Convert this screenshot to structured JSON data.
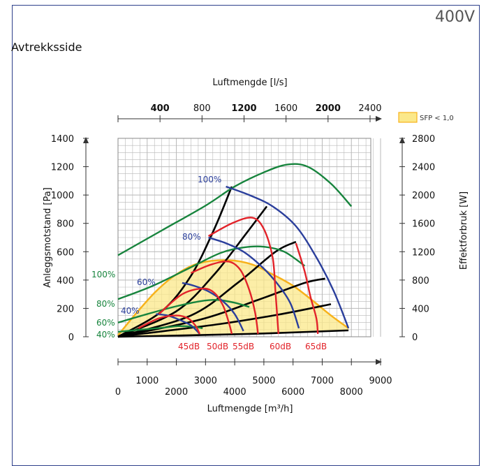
{
  "header": {
    "voltage": "400V",
    "section": "Avtrekksside"
  },
  "legend": {
    "label": "SFP < 1,0",
    "color": "#fbe88a"
  },
  "colors": {
    "fan": "#2b3f9c",
    "power": "#17843d",
    "sound": "#e2232a",
    "duct": "#000000",
    "sfp_border": "#f7b21b",
    "grid": "#b8b8b8"
  },
  "chart_data": {
    "type": "line",
    "x_bottom": {
      "label": "Luftmengde [m³/h]",
      "range": [
        0,
        9000
      ],
      "ticks_low": [
        "0",
        "2000",
        "4000",
        "6000",
        "8000"
      ],
      "ticks_high": [
        "1000",
        "3000",
        "5000",
        "7000",
        "9000"
      ]
    },
    "x_top": {
      "label": "Luftmengde [l/s]",
      "range": [
        0,
        2500
      ],
      "ticks": [
        "400",
        "800",
        "1200",
        "1600",
        "2000",
        "2400"
      ]
    },
    "y_left": {
      "label": "Anleggsmotstand [Pa]",
      "range": [
        0,
        1400
      ],
      "ticks": [
        "0",
        "200",
        "400",
        "600",
        "800",
        "1000",
        "1200",
        "1400"
      ]
    },
    "y_right": {
      "label": "Effektforbruk [W]",
      "range": [
        0,
        2800
      ],
      "ticks": [
        "0",
        "400",
        "800",
        "1200",
        "1600",
        "2000",
        "2400",
        "2800"
      ]
    },
    "grid": true,
    "fan_curves": [
      {
        "name": "100%",
        "points": [
          [
            3700,
            1060
          ],
          [
            4500,
            1000
          ],
          [
            5300,
            920
          ],
          [
            6100,
            780
          ],
          [
            6800,
            560
          ],
          [
            7400,
            320
          ],
          [
            7900,
            60
          ]
        ]
      },
      {
        "name": "80%",
        "points": [
          [
            3100,
            700
          ],
          [
            3700,
            660
          ],
          [
            4300,
            600
          ],
          [
            4900,
            500
          ],
          [
            5400,
            390
          ],
          [
            5900,
            240
          ],
          [
            6200,
            60
          ]
        ]
      },
      {
        "name": "60%",
        "points": [
          [
            2200,
            380
          ],
          [
            2600,
            360
          ],
          [
            3100,
            320
          ],
          [
            3600,
            250
          ],
          [
            4000,
            160
          ],
          [
            4300,
            40
          ]
        ]
      },
      {
        "name": "40%",
        "points": [
          [
            1300,
            160
          ],
          [
            1700,
            150
          ],
          [
            2100,
            120
          ],
          [
            2500,
            80
          ],
          [
            2800,
            20
          ]
        ]
      }
    ],
    "power_curves": [
      {
        "name": "100%",
        "points": [
          [
            0,
            1150
          ],
          [
            1500,
            1500
          ],
          [
            3000,
            1850
          ],
          [
            4000,
            2120
          ],
          [
            5000,
            2320
          ],
          [
            5800,
            2430
          ],
          [
            6500,
            2400
          ],
          [
            7300,
            2160
          ],
          [
            8000,
            1840
          ]
        ]
      },
      {
        "name": "80%",
        "points": [
          [
            0,
            530
          ],
          [
            1200,
            720
          ],
          [
            2400,
            960
          ],
          [
            3500,
            1180
          ],
          [
            4300,
            1260
          ],
          [
            5000,
            1270
          ],
          [
            5700,
            1200
          ],
          [
            6400,
            1000
          ]
        ]
      },
      {
        "name": "60%",
        "points": [
          [
            0,
            200
          ],
          [
            1000,
            320
          ],
          [
            2000,
            430
          ],
          [
            2800,
            500
          ],
          [
            3400,
            520
          ],
          [
            4000,
            480
          ],
          [
            4500,
            420
          ]
        ]
      },
      {
        "name": "40%",
        "points": [
          [
            0,
            70
          ],
          [
            800,
            100
          ],
          [
            1600,
            130
          ],
          [
            2100,
            150
          ],
          [
            2600,
            140
          ],
          [
            2900,
            120
          ]
        ]
      }
    ],
    "sound_curves": [
      {
        "name": "45dB",
        "points": [
          [
            700,
            60
          ],
          [
            1400,
            130
          ],
          [
            2000,
            150
          ],
          [
            2400,
            130
          ],
          [
            2650,
            80
          ],
          [
            2800,
            20
          ]
        ]
      },
      {
        "name": "50dB",
        "points": [
          [
            1400,
            160
          ],
          [
            2200,
            300
          ],
          [
            2900,
            340
          ],
          [
            3300,
            310
          ],
          [
            3600,
            220
          ],
          [
            3800,
            100
          ],
          [
            3900,
            20
          ]
        ]
      },
      {
        "name": "55dB",
        "points": [
          [
            2500,
            450
          ],
          [
            3200,
            510
          ],
          [
            3800,
            530
          ],
          [
            4200,
            470
          ],
          [
            4500,
            330
          ],
          [
            4700,
            170
          ],
          [
            4800,
            20
          ]
        ]
      },
      {
        "name": "60dB",
        "points": [
          [
            3100,
            710
          ],
          [
            3900,
            800
          ],
          [
            4600,
            840
          ],
          [
            5000,
            760
          ],
          [
            5300,
            560
          ],
          [
            5400,
            310
          ],
          [
            5500,
            20
          ]
        ]
      },
      {
        "name": "65dB",
        "points": [
          [
            6100,
            660
          ],
          [
            6400,
            460
          ],
          [
            6600,
            280
          ],
          [
            6800,
            130
          ],
          [
            6850,
            20
          ]
        ]
      }
    ],
    "duct_curves": [
      {
        "points": [
          [
            0,
            0
          ],
          [
            1500,
            180
          ],
          [
            2500,
            430
          ],
          [
            3300,
            760
          ],
          [
            3900,
            1060
          ]
        ]
      },
      {
        "points": [
          [
            0,
            0
          ],
          [
            2000,
            180
          ],
          [
            3300,
            440
          ],
          [
            4400,
            730
          ],
          [
            5100,
            920
          ]
        ]
      },
      {
        "points": [
          [
            0,
            0
          ],
          [
            2500,
            150
          ],
          [
            4100,
            380
          ],
          [
            5400,
            600
          ],
          [
            6100,
            670
          ]
        ]
      },
      {
        "points": [
          [
            0,
            0
          ],
          [
            2800,
            120
          ],
          [
            4800,
            260
          ],
          [
            6400,
            380
          ],
          [
            7100,
            410
          ]
        ]
      },
      {
        "points": [
          [
            0,
            0
          ],
          [
            3500,
            90
          ],
          [
            5600,
            160
          ],
          [
            7300,
            230
          ]
        ]
      },
      {
        "points": [
          [
            0,
            0
          ],
          [
            4500,
            20
          ],
          [
            7900,
            45
          ]
        ]
      }
    ],
    "sfp_region": {
      "points": [
        [
          0,
          10
        ],
        [
          600,
          160
        ],
        [
          1300,
          320
        ],
        [
          2000,
          440
        ],
        [
          2800,
          520
        ],
        [
          3800,
          540
        ],
        [
          4600,
          510
        ],
        [
          5300,
          440
        ],
        [
          6000,
          360
        ],
        [
          6700,
          250
        ],
        [
          7300,
          150
        ],
        [
          7900,
          60
        ],
        [
          7900,
          40
        ],
        [
          0,
          0
        ]
      ]
    },
    "sound_labels": [
      "45dB",
      "50dB",
      "55dB",
      "60dB",
      "65dB"
    ],
    "fan_labels": [
      "100%",
      "80%",
      "60%",
      "40%"
    ],
    "power_labels": [
      "100%",
      "80%",
      "60%",
      "40%"
    ]
  }
}
